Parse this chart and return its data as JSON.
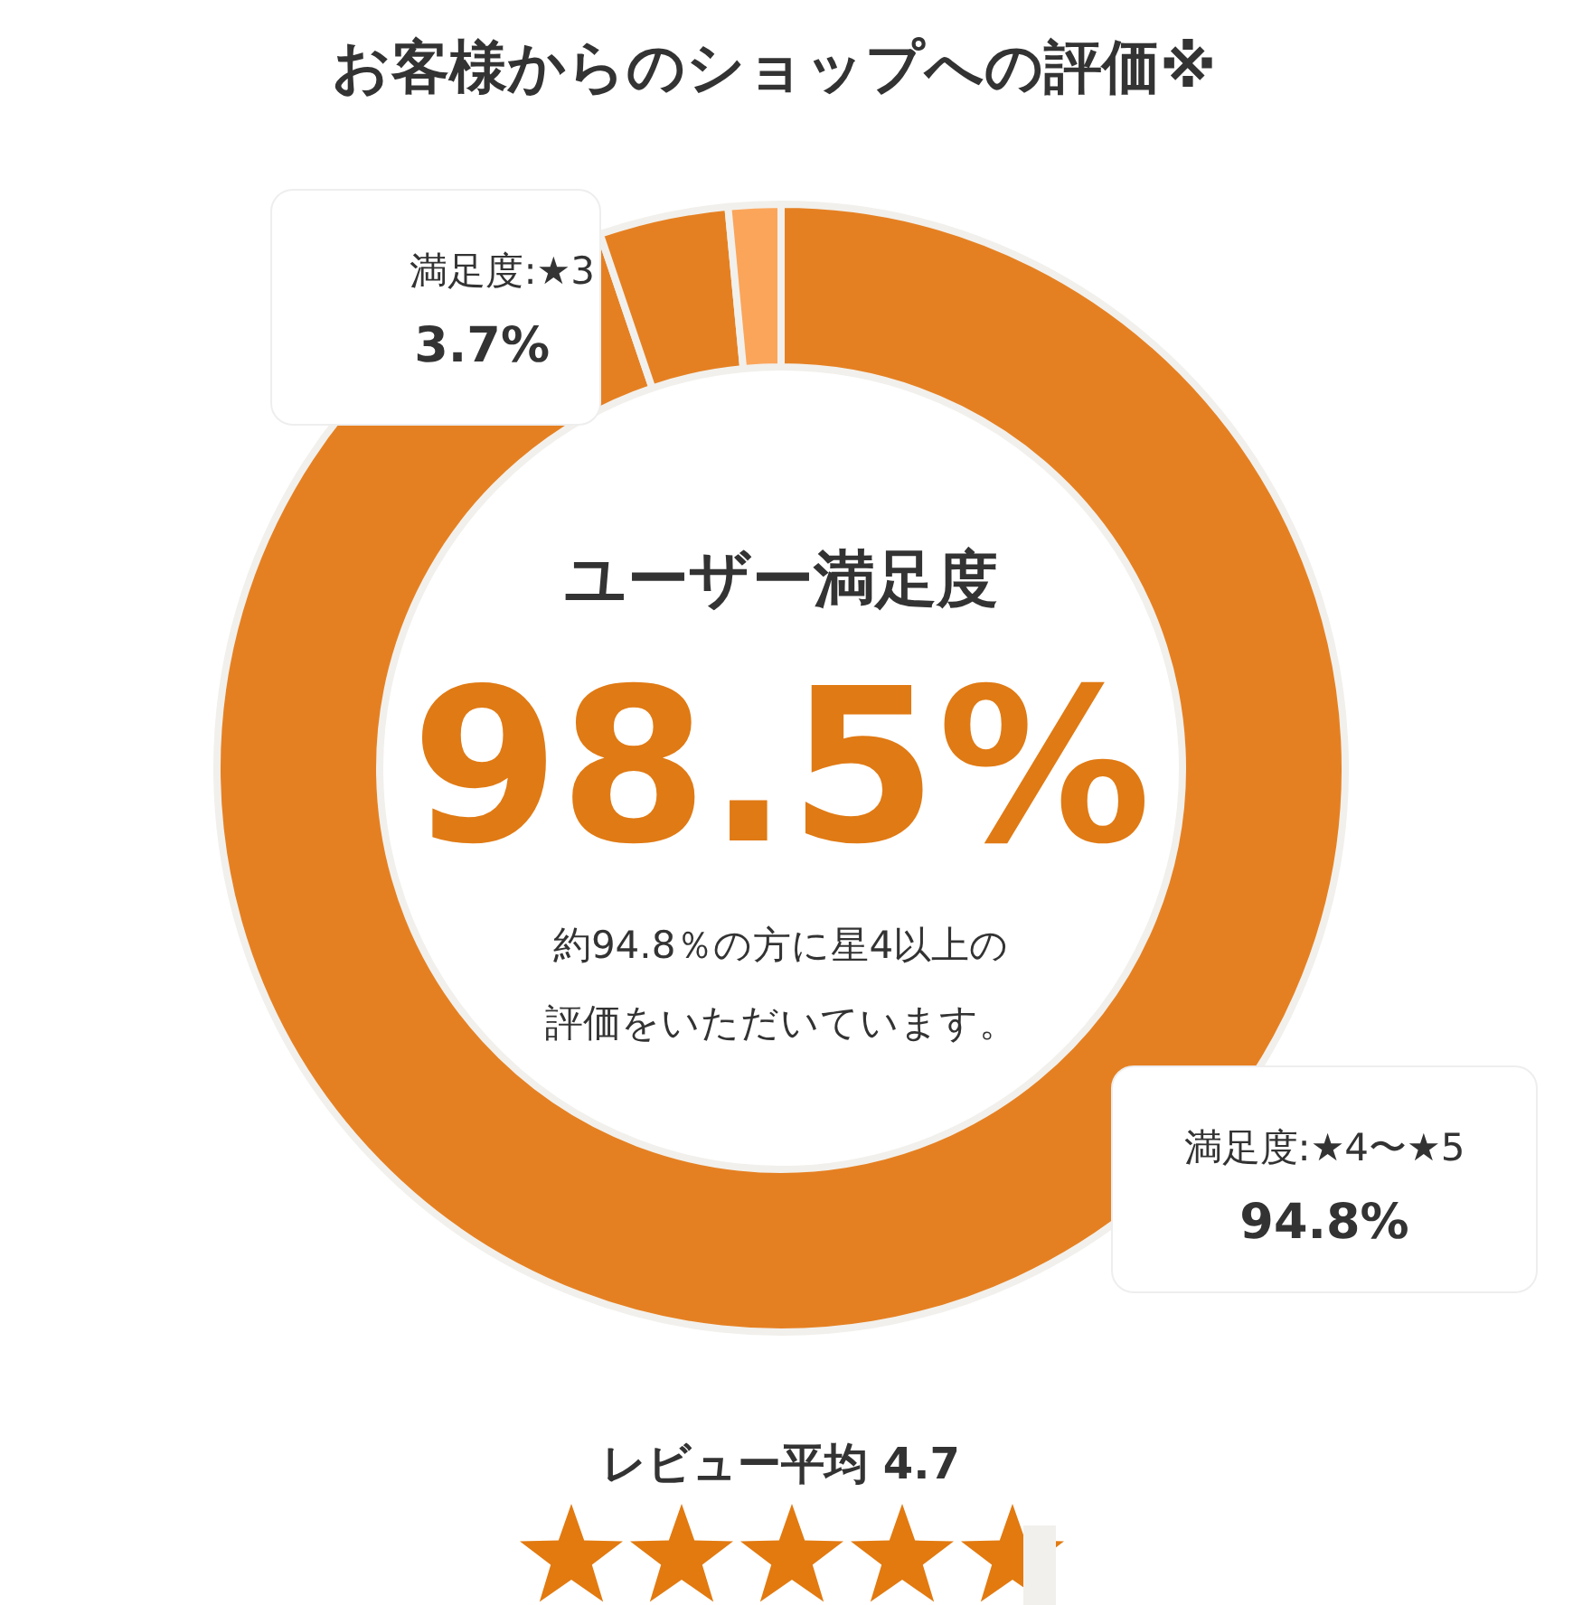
{
  "chart_data": {
    "type": "donut",
    "title": "お客様からのショップへの評価※",
    "categories": [
      "満足度:★4〜★5",
      "満足度:★3",
      null
    ],
    "values": [
      94.8,
      3.7,
      1.5
    ],
    "colors": [
      "#e58022",
      "#e58022",
      "#fba55a"
    ],
    "value_labels": [
      "94.8%",
      "3.7%",
      null
    ],
    "annotations": [
      "ユーザー満足度",
      "98.5%",
      "約94.8％の方に星4以上の",
      "評価をいただいています。",
      "レビュー平均 4.7"
    ]
  }
}
